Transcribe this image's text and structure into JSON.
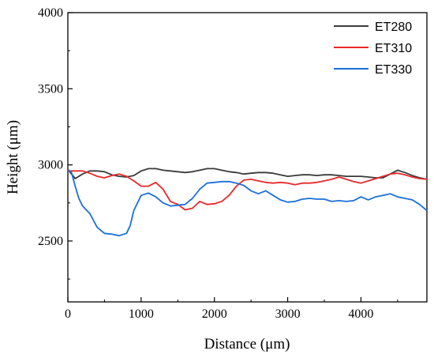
{
  "chart_data": {
    "type": "line",
    "xlabel": "Distance (μm)",
    "ylabel": "Height (μm)",
    "xlim": [
      0,
      4900
    ],
    "ylim": [
      2100,
      4000
    ],
    "x_ticks": [
      0,
      1000,
      2000,
      3000,
      4000
    ],
    "x_tick_labels": [
      "0",
      "1000",
      "2000",
      "3000",
      "4000"
    ],
    "y_ticks": [
      2500,
      3000,
      3500,
      4000
    ],
    "y_tick_labels": [
      "2500",
      "3000",
      "3500",
      "4000"
    ],
    "legend_position": "top-right",
    "grid": false,
    "series": [
      {
        "name": "ET280",
        "color": "#3a3a3a",
        "x": [
          0,
          100,
          200,
          300,
          400,
          500,
          600,
          700,
          800,
          900,
          1000,
          1100,
          1200,
          1300,
          1400,
          1500,
          1600,
          1700,
          1800,
          1900,
          2000,
          2100,
          2200,
          2300,
          2400,
          2500,
          2600,
          2700,
          2800,
          2900,
          3000,
          3100,
          3200,
          3300,
          3400,
          3500,
          3600,
          3700,
          3800,
          3900,
          4000,
          4100,
          4200,
          4300,
          4400,
          4500,
          4600,
          4700,
          4800,
          4900
        ],
        "y": [
          2970,
          2910,
          2940,
          2960,
          2960,
          2955,
          2935,
          2925,
          2920,
          2930,
          2960,
          2975,
          2975,
          2965,
          2960,
          2955,
          2950,
          2955,
          2965,
          2975,
          2975,
          2965,
          2955,
          2950,
          2940,
          2945,
          2950,
          2950,
          2945,
          2935,
          2925,
          2930,
          2935,
          2935,
          2930,
          2935,
          2935,
          2930,
          2925,
          2925,
          2925,
          2920,
          2915,
          2915,
          2940,
          2965,
          2950,
          2930,
          2915,
          2905
        ]
      },
      {
        "name": "ET310",
        "color": "#e8282a",
        "x": [
          0,
          100,
          200,
          300,
          400,
          500,
          600,
          700,
          800,
          900,
          1000,
          1100,
          1200,
          1300,
          1400,
          1500,
          1600,
          1700,
          1800,
          1900,
          2000,
          2100,
          2200,
          2300,
          2400,
          2500,
          2600,
          2700,
          2800,
          2900,
          3000,
          3100,
          3200,
          3300,
          3400,
          3500,
          3600,
          3700,
          3800,
          3900,
          4000,
          4100,
          4200,
          4300,
          4400,
          4500,
          4600,
          4700,
          4800,
          4900
        ],
        "y": [
          2960,
          2960,
          2960,
          2945,
          2925,
          2915,
          2930,
          2940,
          2925,
          2895,
          2860,
          2860,
          2885,
          2840,
          2760,
          2740,
          2705,
          2715,
          2760,
          2740,
          2745,
          2760,
          2800,
          2860,
          2900,
          2905,
          2895,
          2885,
          2880,
          2885,
          2880,
          2870,
          2880,
          2880,
          2885,
          2895,
          2905,
          2920,
          2905,
          2890,
          2880,
          2895,
          2910,
          2925,
          2940,
          2945,
          2935,
          2920,
          2910,
          2905
        ]
      },
      {
        "name": "ET330",
        "color": "#1b6fd9",
        "x": [
          0,
          50,
          100,
          150,
          200,
          300,
          400,
          500,
          600,
          700,
          800,
          850,
          900,
          1000,
          1100,
          1200,
          1300,
          1400,
          1500,
          1600,
          1700,
          1800,
          1900,
          2000,
          2100,
          2200,
          2300,
          2400,
          2500,
          2600,
          2700,
          2800,
          2900,
          3000,
          3100,
          3200,
          3300,
          3400,
          3500,
          3600,
          3700,
          3800,
          3900,
          4000,
          4100,
          4200,
          4300,
          4400,
          4500,
          4600,
          4700,
          4800,
          4900
        ],
        "y": [
          2970,
          2950,
          2860,
          2780,
          2730,
          2680,
          2590,
          2550,
          2545,
          2535,
          2550,
          2600,
          2700,
          2800,
          2815,
          2790,
          2750,
          2730,
          2735,
          2740,
          2780,
          2840,
          2880,
          2885,
          2890,
          2890,
          2880,
          2865,
          2830,
          2810,
          2830,
          2800,
          2770,
          2755,
          2760,
          2775,
          2780,
          2775,
          2775,
          2760,
          2765,
          2760,
          2765,
          2790,
          2770,
          2790,
          2800,
          2810,
          2790,
          2780,
          2770,
          2740,
          2700
        ]
      }
    ]
  }
}
